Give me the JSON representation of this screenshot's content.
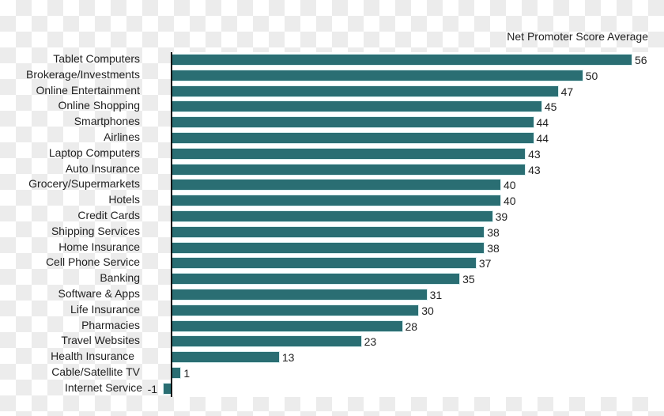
{
  "chart_data": {
    "type": "bar",
    "orientation": "horizontal",
    "title": "Net Promoter Score Average",
    "xlabel": "",
    "ylabel": "",
    "categories": [
      "Tablet Computers",
      "Brokerage/Investments",
      "Online Entertainment",
      "Online Shopping",
      "Smartphones",
      "Airlines",
      "Laptop Computers",
      "Auto Insurance",
      "Grocery/Supermarkets",
      "Hotels",
      "Credit Cards",
      "Shipping Services",
      "Home Insurance",
      "Cell Phone Service",
      "Banking",
      "Software & Apps",
      "Life Insurance",
      "Pharmacies",
      "Travel Websites",
      "Health Insurance",
      "Cable/Satellite TV",
      "Internet Service"
    ],
    "values": [
      56,
      50,
      47,
      45,
      44,
      44,
      43,
      43,
      40,
      40,
      39,
      38,
      38,
      37,
      35,
      31,
      30,
      28,
      23,
      13,
      1,
      -1
    ],
    "series": [
      {
        "name": "Net Promoter Score Average",
        "color": "#2a6e73"
      }
    ],
    "data_labels": true,
    "grid": false,
    "legend": "none",
    "xlim": [
      -1,
      56
    ]
  },
  "colors": {
    "bar": "#2a6e73",
    "axis": "#111111",
    "text": "#222222"
  }
}
